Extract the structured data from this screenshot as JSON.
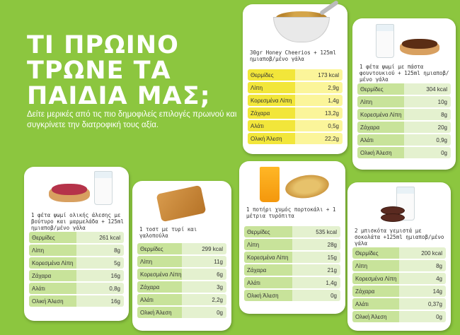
{
  "title_lines": [
    "ΤΙ ΠΡΩΙΝΟ",
    "ΤΡΩΝΕ ΤΑ",
    "ΠΑΙΔΙΑ ΜΑΣ;"
  ],
  "subtitle": "Δείτε μερικές από τις πιο δημοφιλείς επιλογές πρωινού και συγκρίνετε την διατροφική τους αξία.",
  "colors": {
    "background": "#8cc63f",
    "label_green": "#c8e39a",
    "label_yellow": "#f2e63a"
  },
  "cards": [
    {
      "id": "cheerios",
      "icon": "cereal-bowl-icon",
      "caption": "30gr Honey Cheerios + 125ml ημιαποβ/μένο γάλα",
      "rows": [
        {
          "label": "Θερμίδες",
          "value": "173 kcal"
        },
        {
          "label": "Λίπη",
          "value": "2,9g"
        },
        {
          "label": "Κορεσμένα Λίπη",
          "value": "1,4g"
        },
        {
          "label": "Ζάχαρα",
          "value": "13,2g"
        },
        {
          "label": "Αλάτι",
          "value": "0,5g"
        },
        {
          "label": "Ολική Άλεση",
          "value": "22,2g"
        }
      ]
    },
    {
      "id": "nutella",
      "icon": "bread-chocolate-icon",
      "caption": "1 φέτα ψωμί με πάστα φουντουκιού + 125ml ημιαποβ/μένο γάλα",
      "rows": [
        {
          "label": "Θερμίδες",
          "value": "304 kcal"
        },
        {
          "label": "Λίπη",
          "value": "10g"
        },
        {
          "label": "Κορεσμένα Λίπη",
          "value": "8g"
        },
        {
          "label": "Ζάχαρα",
          "value": "20g"
        },
        {
          "label": "Αλάτι",
          "value": "0,9g"
        },
        {
          "label": "Ολική Άλεση",
          "value": "0g"
        }
      ]
    },
    {
      "id": "butter-jam",
      "icon": "bread-jam-icon",
      "caption": "1 φέτα ψωμί ολικής άλεσης με βούτυρο και μαρμελάδα + 125ml ημιαποβ/μένο γάλα",
      "rows": [
        {
          "label": "Θερμίδες",
          "value": "261 kcal"
        },
        {
          "label": "Λίπη",
          "value": "8g"
        },
        {
          "label": "Κορεσμένα Λίπη",
          "value": "5g"
        },
        {
          "label": "Ζάχαρα",
          "value": "16g"
        },
        {
          "label": "Αλάτι",
          "value": "0,8g"
        },
        {
          "label": "Ολική Άλεση",
          "value": "16g"
        }
      ]
    },
    {
      "id": "toast",
      "icon": "toast-sandwich-icon",
      "caption": "1 τοστ με τυρί και γαλοπούλα",
      "rows": [
        {
          "label": "Θερμίδες",
          "value": "299 kcal"
        },
        {
          "label": "Λίπη",
          "value": "11g"
        },
        {
          "label": "Κορεσμένα Λίπη",
          "value": "6g"
        },
        {
          "label": "Ζάχαρα",
          "value": "3g"
        },
        {
          "label": "Αλάτι",
          "value": "2,2g"
        },
        {
          "label": "Ολική Άλεση",
          "value": "0g"
        }
      ]
    },
    {
      "id": "oj-pie",
      "icon": "juice-pie-icon",
      "caption": "1 ποτήρι χυμός πορτοκάλι + 1 μέτρια τυρόπιτα",
      "rows": [
        {
          "label": "Θερμίδες",
          "value": "535 kcal"
        },
        {
          "label": "Λίπη",
          "value": "28g"
        },
        {
          "label": "Κορεσμένα Λίπη",
          "value": "15g"
        },
        {
          "label": "Ζάχαρα",
          "value": "21g"
        },
        {
          "label": "Αλάτι",
          "value": "1,4g"
        },
        {
          "label": "Ολική Άλεση",
          "value": "0g"
        }
      ]
    },
    {
      "id": "cookies",
      "icon": "cookies-milk-icon",
      "caption": "2 μπισκότα γεμιστά με σοκολάτα +125ml ημιαποβ/μένο γάλα",
      "rows": [
        {
          "label": "Θερμίδες",
          "value": "200 kcal"
        },
        {
          "label": "Λίπη",
          "value": "8g"
        },
        {
          "label": "Κορεσμένα Λίπη",
          "value": "4g"
        },
        {
          "label": "Ζάχαρα",
          "value": "14g"
        },
        {
          "label": "Αλάτι",
          "value": "0,37g"
        },
        {
          "label": "Ολική Άλεση",
          "value": "0g"
        }
      ]
    }
  ]
}
